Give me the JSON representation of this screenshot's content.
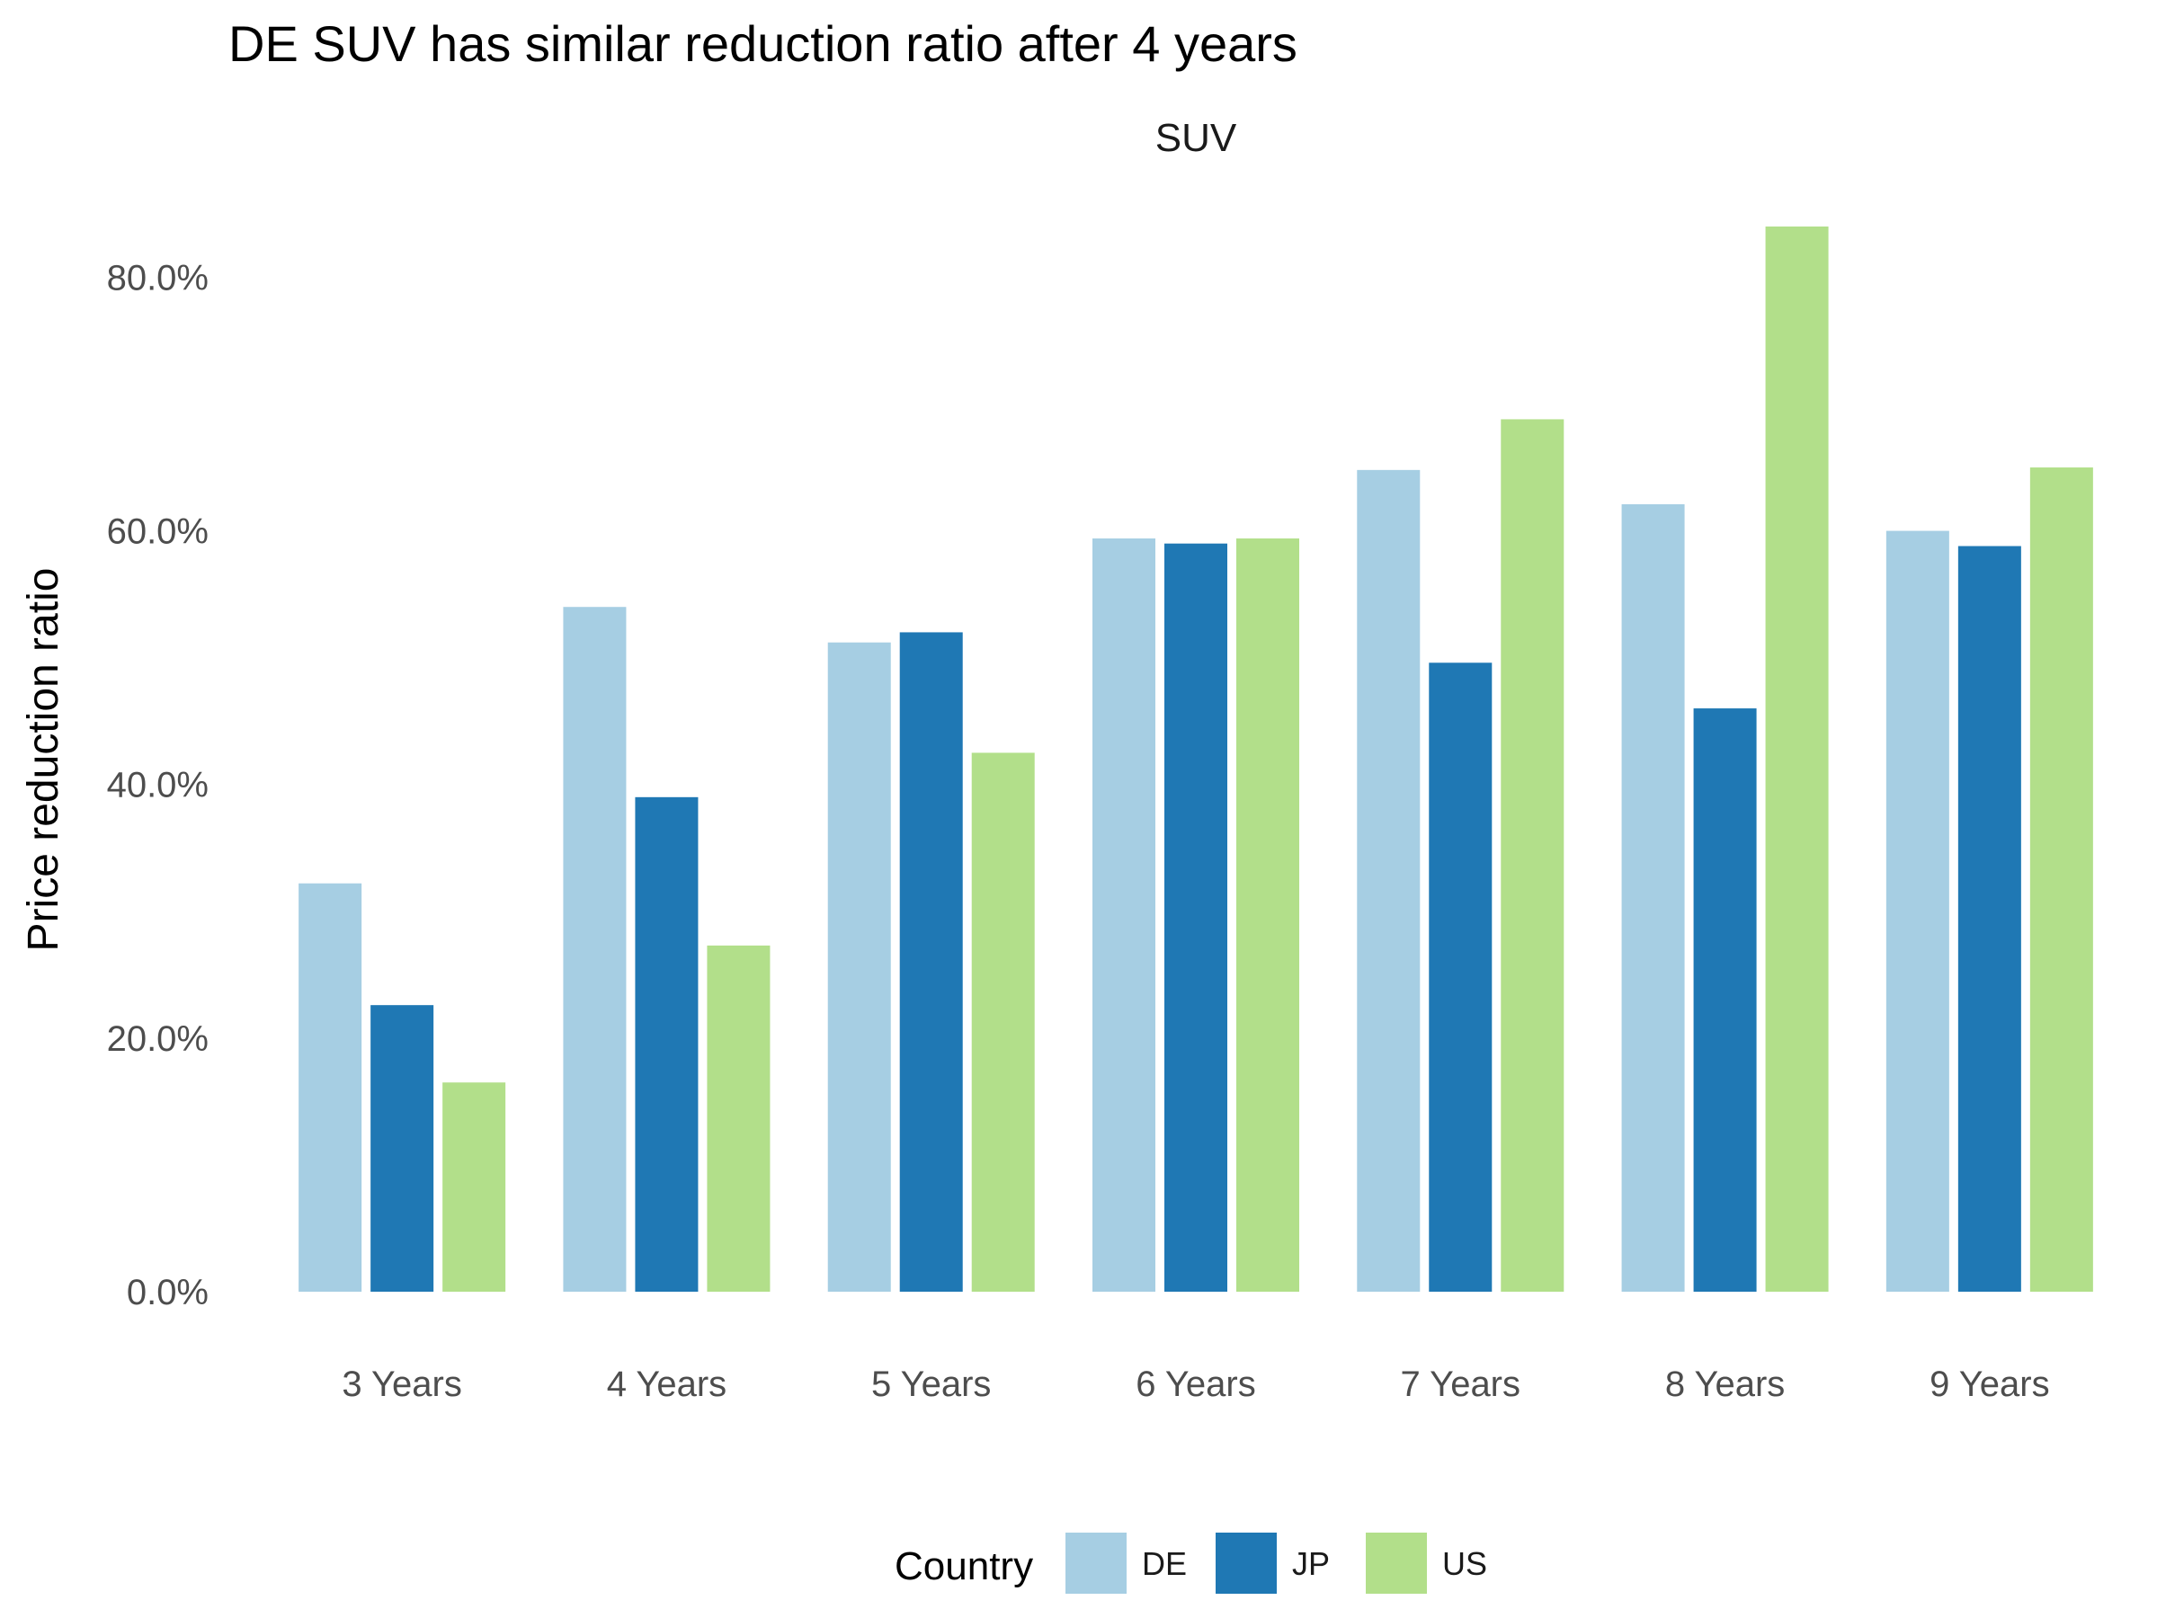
{
  "chart_data": {
    "type": "bar",
    "title": "DE SUV has similar reduction ratio after 4 years",
    "facet_label": "SUV",
    "xlabel": "",
    "ylabel": "Price reduction ratio",
    "categories": [
      "3 Years",
      "4 Years",
      "5 Years",
      "6 Years",
      "7 Years",
      "8 Years",
      "9 Years"
    ],
    "series": [
      {
        "name": "DE",
        "color": "#a6cee3",
        "values": [
          0.322,
          0.54,
          0.512,
          0.594,
          0.648,
          0.621,
          0.6
        ]
      },
      {
        "name": "JP",
        "color": "#1f78b4",
        "values": [
          0.226,
          0.39,
          0.52,
          0.59,
          0.496,
          0.46,
          0.588
        ]
      },
      {
        "name": "US",
        "color": "#b2df8a",
        "values": [
          0.165,
          0.273,
          0.425,
          0.594,
          0.688,
          0.84,
          0.65
        ]
      }
    ],
    "ylim": [
      0,
      0.84
    ],
    "yticks": [
      0,
      0.2,
      0.4,
      0.6,
      0.8
    ],
    "ytick_labels": [
      "0.0%",
      "20.0%",
      "40.0%",
      "60.0%",
      "80.0%"
    ],
    "grid": false,
    "legend": {
      "title": "Country",
      "position": "bottom"
    }
  }
}
